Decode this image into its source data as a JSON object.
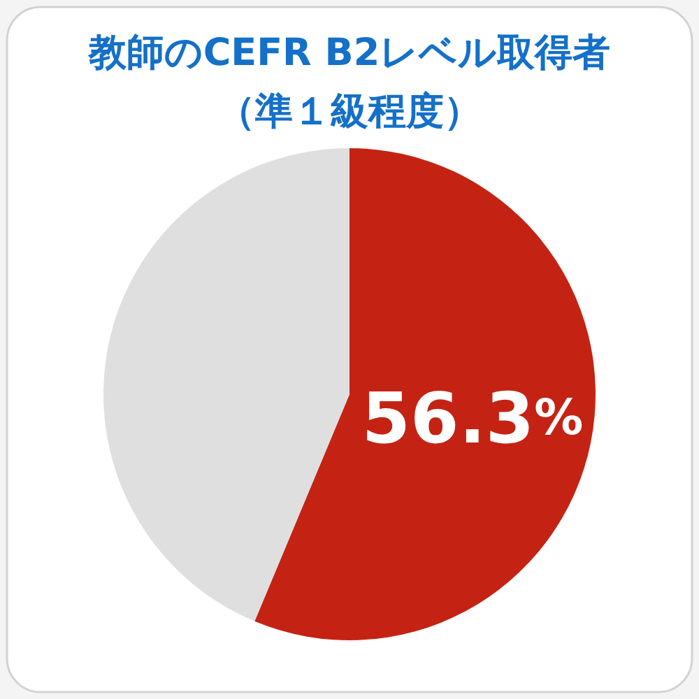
{
  "chart_data": {
    "type": "pie",
    "title": "教師のCEFR B2レベル取得者",
    "subtitle": "（準１級程度）",
    "categories": [
      null,
      null
    ],
    "values": [
      56.3,
      43.7
    ],
    "colors": [
      "#c42314",
      "#dfdfdf"
    ],
    "value_labels": [
      "56.3%",
      null
    ]
  }
}
